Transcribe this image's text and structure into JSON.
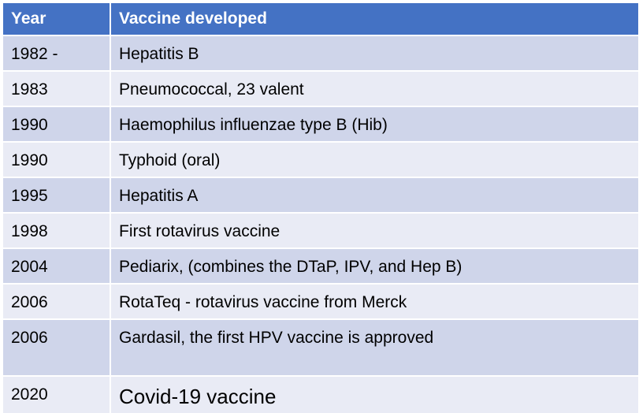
{
  "table": {
    "headers": {
      "year": "Year",
      "vaccine": "Vaccine developed"
    },
    "rows": [
      {
        "year": "1982 -",
        "vaccine": "Hepatitis B"
      },
      {
        "year": "1983",
        "vaccine": "Pneumococcal, 23 valent"
      },
      {
        "year": "1990",
        "vaccine": "Haemophilus influenzae type B (Hib)"
      },
      {
        "year": "1990",
        "vaccine": "Typhoid (oral)"
      },
      {
        "year": "1995",
        "vaccine": "Hepatitis A"
      },
      {
        "year": "1998",
        "vaccine": "First rotavirus vaccine"
      },
      {
        "year": "2004",
        "vaccine": "Pediarix, (combines the DTaP, IPV, and Hep B)"
      },
      {
        "year": "2006",
        "vaccine": "RotaTeq - rotavirus vaccine from Merck"
      },
      {
        "year": "2006",
        "vaccine": "Gardasil, the first HPV vaccine is approved"
      },
      {
        "year": "2020",
        "vaccine": "Covid-19 vaccine"
      }
    ]
  },
  "colors": {
    "header_bg": "#4472c4",
    "header_text": "#ffffff",
    "row_dark": "#cfd5ea",
    "row_light": "#e9ebf5"
  }
}
